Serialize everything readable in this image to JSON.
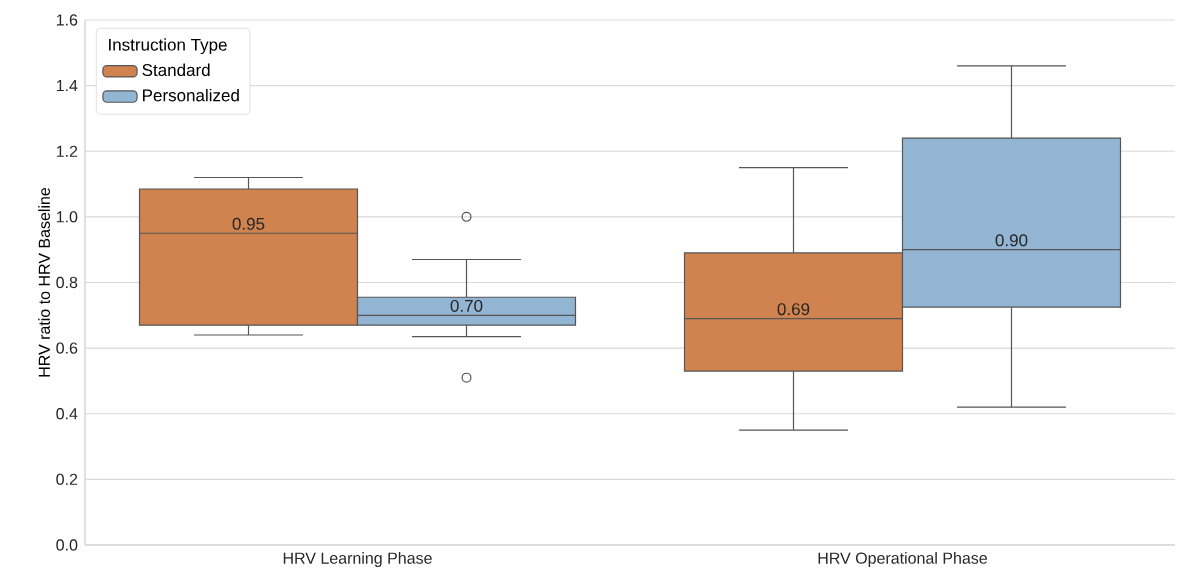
{
  "chart_data": {
    "type": "box",
    "ylabel": "HRV ratio to HRV Baseline",
    "legend_title": "Instruction Type",
    "categories": [
      "HRV Learning Phase",
      "HRV Operational Phase"
    ],
    "series": [
      {
        "name": "Standard",
        "color": "#d0834f",
        "value_labels": [
          "0.95",
          "0.69"
        ],
        "boxes": [
          {
            "low": 0.64,
            "q1": 0.67,
            "median": 0.95,
            "q3": 1.085,
            "high": 1.12
          },
          {
            "low": 0.35,
            "q1": 0.53,
            "median": 0.69,
            "q3": 0.89,
            "high": 1.15
          }
        ]
      },
      {
        "name": "Personalized",
        "color": "#93b5d4",
        "value_labels": [
          "0.70",
          "0.90"
        ],
        "boxes": [
          {
            "low": 0.635,
            "q1": 0.67,
            "median": 0.7,
            "q3": 0.755,
            "high": 0.87,
            "outliers": [
              1.0,
              0.51
            ]
          },
          {
            "low": 0.42,
            "q1": 0.725,
            "median": 0.9,
            "q3": 1.24,
            "high": 1.46
          }
        ]
      }
    ],
    "ylim": [
      0,
      1.6
    ],
    "yticks": [
      {
        "value": 0,
        "label": "0.0"
      },
      {
        "value": 0.2,
        "label": "0.2"
      },
      {
        "value": 0.4,
        "label": "0.4"
      },
      {
        "value": 0.6,
        "label": "0.6"
      },
      {
        "value": 0.8,
        "label": "0.8"
      },
      {
        "value": 1.0,
        "label": "1.0"
      },
      {
        "value": 1.2,
        "label": "1.2"
      },
      {
        "value": 1.4,
        "label": "1.4"
      },
      {
        "value": 1.6,
        "label": "1.6"
      }
    ],
    "grid": "y",
    "legend": "top left"
  }
}
